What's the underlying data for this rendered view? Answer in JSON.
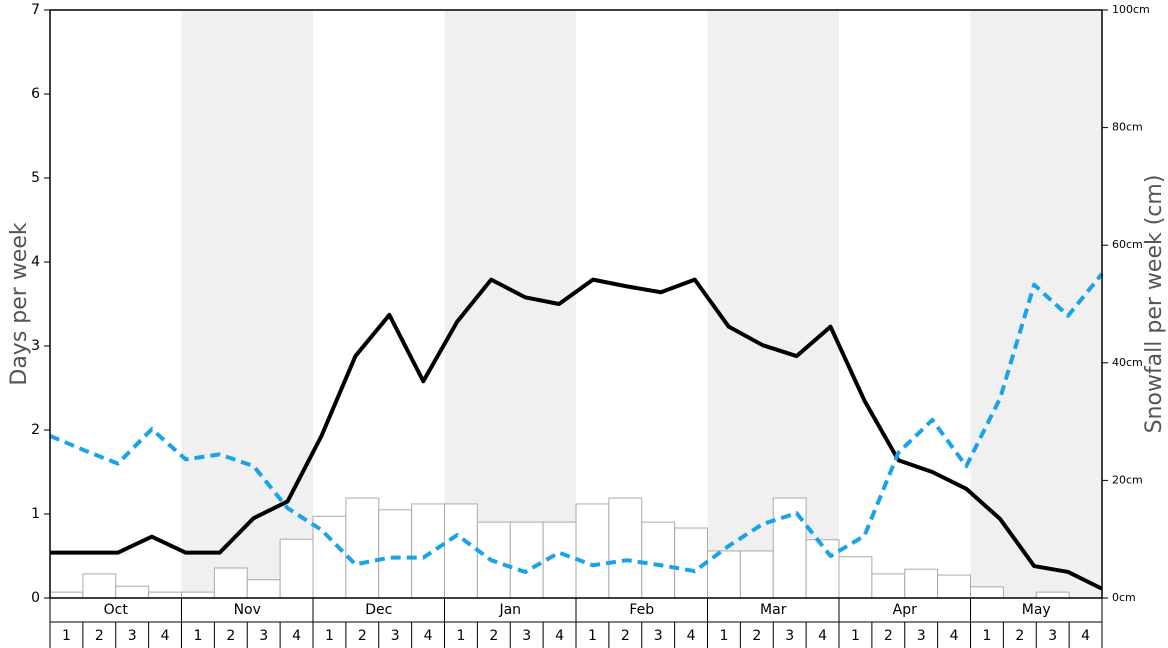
{
  "chart_data": {
    "type": "bar-line",
    "ylabel": "Days per week",
    "y2label": "Snowfall per week (cm)",
    "months": [
      "Oct",
      "Nov",
      "Dec",
      "Jan",
      "Feb",
      "Mar",
      "Apr",
      "May"
    ],
    "categories": [
      "1",
      "2",
      "3",
      "4",
      "1",
      "2",
      "3",
      "4",
      "1",
      "2",
      "3",
      "4",
      "1",
      "2",
      "3",
      "4",
      "1",
      "2",
      "3",
      "4",
      "1",
      "2",
      "3",
      "4",
      "1",
      "2",
      "3",
      "4",
      "1",
      "2",
      "3",
      "4"
    ],
    "ylim": [
      0,
      7
    ],
    "yticks": [
      0,
      1,
      2,
      3,
      4,
      5,
      6,
      7
    ],
    "y2lim": [
      0,
      100
    ],
    "y2ticks": [
      {
        "value": 0,
        "label": "0cm"
      },
      {
        "value": 20,
        "label": "20cm"
      },
      {
        "value": 40,
        "label": "40cm"
      },
      {
        "value": 60,
        "label": "60cm"
      },
      {
        "value": 80,
        "label": "80cm"
      },
      {
        "value": 100,
        "label": "100cm"
      }
    ],
    "series": [
      {
        "kind": "bar",
        "axis": "y2",
        "color": "#ffffff",
        "edgecolor": "#aaaaaa",
        "values": [
          1.0,
          4.1,
          2.0,
          1.0,
          1.0,
          5.1,
          3.1,
          10.0,
          13.9,
          17.0,
          15.0,
          16.0,
          16.0,
          12.9,
          12.9,
          12.9,
          16.0,
          17.0,
          12.9,
          11.9,
          8.0,
          8.0,
          17.0,
          9.9,
          7.0,
          4.1,
          4.9,
          3.9,
          1.9,
          0,
          1.0,
          0
        ]
      },
      {
        "kind": "line",
        "color": "#000000",
        "dashed": false,
        "values": [
          0.54,
          0.54,
          0.54,
          0.73,
          0.54,
          0.54,
          0.95,
          1.15,
          1.93,
          2.88,
          3.37,
          2.58,
          3.29,
          3.79,
          3.58,
          3.5,
          3.79,
          3.71,
          3.64,
          3.79,
          3.23,
          3.01,
          2.88,
          3.23,
          2.35,
          1.64,
          1.5,
          1.3,
          0.94,
          0.38,
          0.31,
          0.11
        ]
      },
      {
        "kind": "line",
        "color": "#1aa3e8",
        "dashed": true,
        "values": [
          1.93,
          1.76,
          1.6,
          2.01,
          1.65,
          1.71,
          1.57,
          1.07,
          0.81,
          0.4,
          0.48,
          0.48,
          0.75,
          0.45,
          0.31,
          0.54,
          0.39,
          0.45,
          0.39,
          0.32,
          0.62,
          0.88,
          1.01,
          0.5,
          0.74,
          1.73,
          2.12,
          1.57,
          2.38,
          3.73,
          3.36,
          3.86
        ]
      }
    ]
  }
}
